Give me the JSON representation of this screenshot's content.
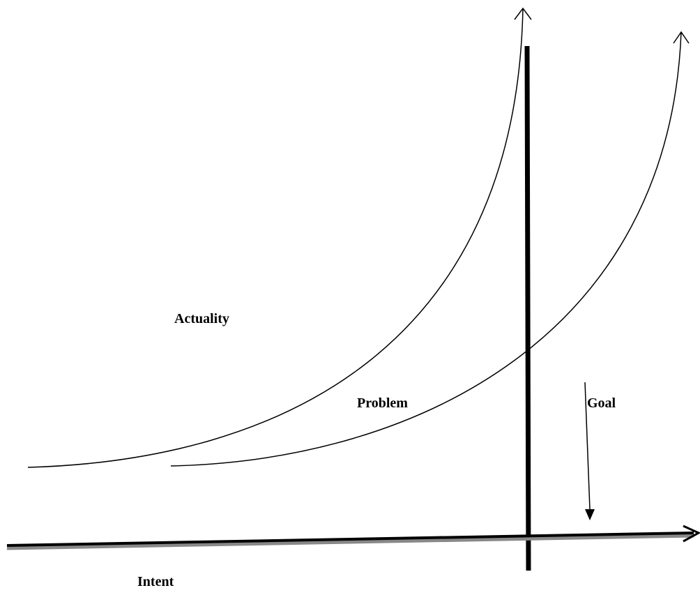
{
  "labels": {
    "actuality": "Actuality",
    "problem": "Problem",
    "goal": "Goal",
    "intent": "Intent"
  }
}
